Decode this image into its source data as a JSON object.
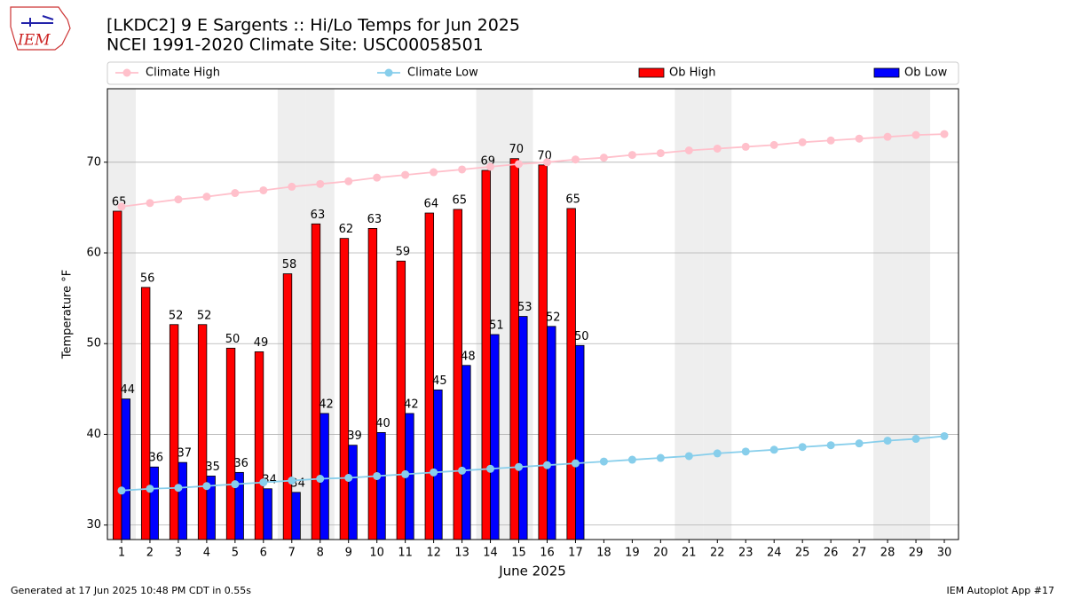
{
  "chart_data": {
    "type": "bar",
    "logo_text": "IEM",
    "title": "[LKDC2] 9 E Sargents :: Hi/Lo Temps for Jun 2025",
    "subtitle": "NCEI 1991-2020 Climate Site: USC00058501",
    "x_label": "June 2025",
    "y_label": "Temperature °F",
    "footer_left": "Generated at 17 Jun 2025 10:48 PM CDT in 0.55s",
    "footer_right": "IEM Autoplot App #17",
    "x": [
      1,
      2,
      3,
      4,
      5,
      6,
      7,
      8,
      9,
      10,
      11,
      12,
      13,
      14,
      15,
      16,
      17,
      18,
      19,
      20,
      21,
      22,
      23,
      24,
      25,
      26,
      27,
      28,
      29,
      30
    ],
    "xlim": [
      0.5,
      30.5
    ],
    "xticks": [
      1,
      2,
      3,
      4,
      5,
      6,
      7,
      8,
      9,
      10,
      11,
      12,
      13,
      14,
      15,
      16,
      17,
      18,
      19,
      20,
      21,
      22,
      23,
      24,
      25,
      26,
      27,
      28,
      29,
      30
    ],
    "ylim": [
      28.4,
      78.1
    ],
    "yticks": [
      30,
      40,
      50,
      60,
      70
    ],
    "grid": true,
    "shaded_x": [
      1,
      7,
      8,
      14,
      15,
      21,
      22,
      28,
      29
    ],
    "shade_color": "#eeeeee",
    "legend": "top",
    "series": [
      {
        "name": "Climate High",
        "kind": "line",
        "color": "pink",
        "values": [
          65.1,
          65.5,
          65.9,
          66.2,
          66.6,
          66.9,
          67.3,
          67.6,
          67.9,
          68.3,
          68.6,
          68.9,
          69.2,
          69.5,
          69.8,
          70.0,
          70.3,
          70.5,
          70.8,
          71.0,
          71.3,
          71.5,
          71.7,
          71.9,
          72.2,
          72.4,
          72.6,
          72.8,
          73.0,
          73.1
        ]
      },
      {
        "name": "Climate Low",
        "kind": "line",
        "color": "skyblue",
        "values": [
          33.8,
          34.0,
          34.1,
          34.3,
          34.5,
          34.7,
          34.9,
          35.1,
          35.2,
          35.4,
          35.6,
          35.8,
          36.0,
          36.2,
          36.4,
          36.6,
          36.8,
          37.0,
          37.2,
          37.4,
          37.6,
          37.9,
          38.1,
          38.3,
          38.6,
          38.8,
          39.0,
          39.3,
          39.5,
          39.8
        ]
      },
      {
        "name": "Ob High",
        "kind": "bar",
        "color": "red",
        "offset": -1,
        "values": [
          64.6,
          56.2,
          52.1,
          52.1,
          49.5,
          49.1,
          57.7,
          63.2,
          61.6,
          62.7,
          59.1,
          64.4,
          64.8,
          69.1,
          70.4,
          69.7,
          64.9,
          null,
          null,
          null,
          null,
          null,
          null,
          null,
          null,
          null,
          null,
          null,
          null,
          null
        ],
        "value_labels": [
          "65",
          "56",
          "52",
          "52",
          "50",
          "49",
          "58",
          "63",
          "62",
          "63",
          "59",
          "64",
          "65",
          "69",
          "70",
          "70",
          "65",
          null,
          null,
          null,
          null,
          null,
          null,
          null,
          null,
          null,
          null,
          null,
          null,
          null
        ]
      },
      {
        "name": "Ob Low",
        "kind": "bar",
        "color": "blue",
        "offset": 0,
        "values": [
          43.9,
          36.4,
          36.9,
          35.4,
          35.8,
          34.0,
          33.6,
          42.3,
          38.8,
          40.2,
          42.3,
          44.9,
          47.6,
          51.0,
          53.0,
          51.9,
          49.8,
          null,
          null,
          null,
          null,
          null,
          null,
          null,
          null,
          null,
          null,
          null,
          null,
          null
        ],
        "value_labels": [
          "44",
          "36",
          "37",
          "35",
          "36",
          "34",
          "34",
          "42",
          "39",
          "40",
          "42",
          "45",
          "48",
          "51",
          "53",
          "52",
          "50",
          null,
          null,
          null,
          null,
          null,
          null,
          null,
          null,
          null,
          null,
          null,
          null,
          null
        ]
      }
    ]
  }
}
